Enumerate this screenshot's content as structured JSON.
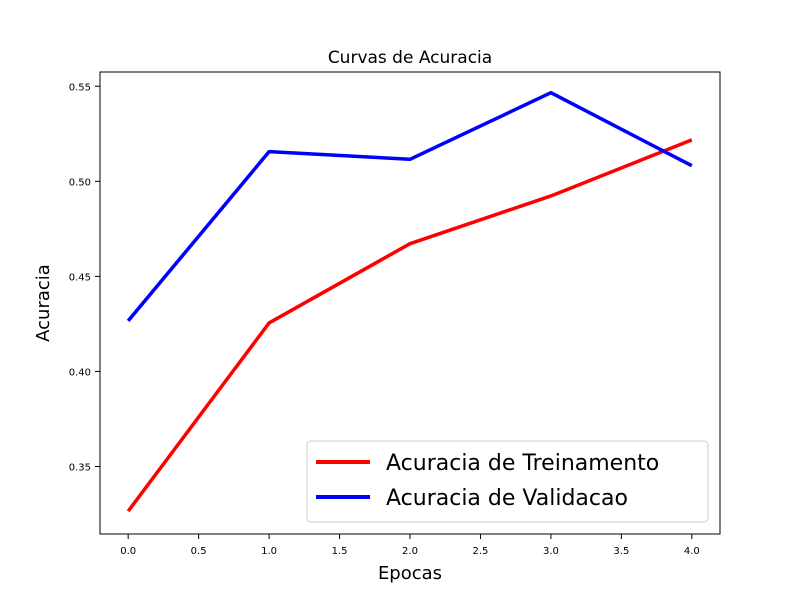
{
  "chart_data": {
    "type": "line",
    "title": "Curvas de Acuracia",
    "xlabel": "Epocas",
    "ylabel": "Acuracia",
    "x": [
      0,
      1,
      2,
      3,
      4
    ],
    "xlim": [
      -0.2,
      4.2
    ],
    "ylim": [
      0.3145,
      0.5575
    ],
    "xticks": [
      "0.0",
      "0.5",
      "1.0",
      "1.5",
      "2.0",
      "2.5",
      "3.0",
      "3.5",
      "4.0"
    ],
    "yticks": [
      "0.35",
      "0.40",
      "0.45",
      "0.50",
      "0.55"
    ],
    "grid": false,
    "legend_position": "lower-right",
    "series": [
      {
        "name": "Acuracia de Treinamento",
        "color": "#ff0000",
        "values": [
          0.3265,
          0.4255,
          0.4672,
          0.4923,
          0.5218
        ]
      },
      {
        "name": "Acuracia de Validacao",
        "color": "#0000ff",
        "values": [
          0.4266,
          0.5156,
          0.5116,
          0.5466,
          0.5082
        ]
      }
    ]
  }
}
